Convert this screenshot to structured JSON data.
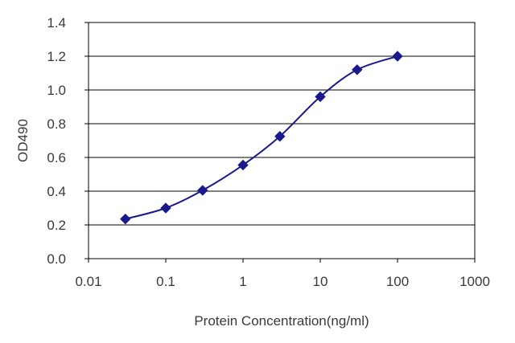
{
  "chart_data": {
    "type": "line",
    "title": "",
    "xlabel": "Protein Concentration(ng/ml)",
    "ylabel": "OD490",
    "xscale": "log",
    "xlim": [
      0.01,
      1000
    ],
    "ylim": [
      0,
      1.4
    ],
    "grid": "horizontal",
    "x_tick_labels": [
      "0.01",
      "0.1",
      "1",
      "10",
      "100",
      "1000"
    ],
    "y_tick_labels": [
      "0.0",
      "0.2",
      "0.4",
      "0.6",
      "0.8",
      "1.0",
      "1.2",
      "1.4"
    ],
    "series": [
      {
        "x": [
          0.03,
          0.1,
          0.3,
          1,
          3,
          10,
          30,
          100
        ],
        "y": [
          0.235,
          0.3,
          0.405,
          0.555,
          0.725,
          0.96,
          1.12,
          1.2
        ],
        "color": "#1a1a8c",
        "marker": "diamond"
      }
    ]
  }
}
